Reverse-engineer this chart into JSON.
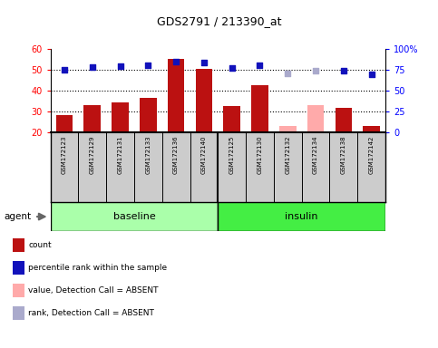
{
  "title": "GDS2791 / 213390_at",
  "samples": [
    "GSM172123",
    "GSM172129",
    "GSM172131",
    "GSM172133",
    "GSM172136",
    "GSM172140",
    "GSM172125",
    "GSM172130",
    "GSM172132",
    "GSM172134",
    "GSM172138",
    "GSM172142"
  ],
  "bar_values": [
    28,
    33,
    34.5,
    36.5,
    55,
    50.5,
    32.5,
    42.5,
    23,
    33,
    31.5,
    23
  ],
  "bar_absent": [
    false,
    false,
    false,
    false,
    false,
    false,
    false,
    false,
    true,
    true,
    false,
    false
  ],
  "rank_values": [
    75,
    78,
    79,
    80,
    85,
    83,
    77,
    80,
    70,
    74,
    74,
    69
  ],
  "rank_absent": [
    false,
    false,
    false,
    false,
    false,
    false,
    false,
    false,
    true,
    true,
    false,
    false
  ],
  "ylim_left": [
    20,
    60
  ],
  "ylim_right": [
    0,
    100
  ],
  "yticks_left": [
    20,
    30,
    40,
    50,
    60
  ],
  "ytick_labels_left": [
    "20",
    "30",
    "40",
    "50",
    "60"
  ],
  "yticks_right": [
    0,
    25,
    50,
    75,
    100
  ],
  "ytick_labels_right": [
    "0",
    "25",
    "50",
    "75",
    "100%"
  ],
  "bar_color_present": "#bb1111",
  "bar_color_absent": "#ffaaaa",
  "rank_color_present": "#1111bb",
  "rank_color_absent": "#aaaacc",
  "grid_yticks": [
    30,
    40,
    50
  ],
  "legend_items": [
    {
      "label": "count",
      "color": "#bb1111"
    },
    {
      "label": "percentile rank within the sample",
      "color": "#1111bb"
    },
    {
      "label": "value, Detection Call = ABSENT",
      "color": "#ffaaaa"
    },
    {
      "label": "rank, Detection Call = ABSENT",
      "color": "#aaaacc"
    }
  ],
  "baseline_color": "#aaffaa",
  "insulin_color": "#44ee44",
  "n_baseline": 6,
  "n_insulin": 6
}
